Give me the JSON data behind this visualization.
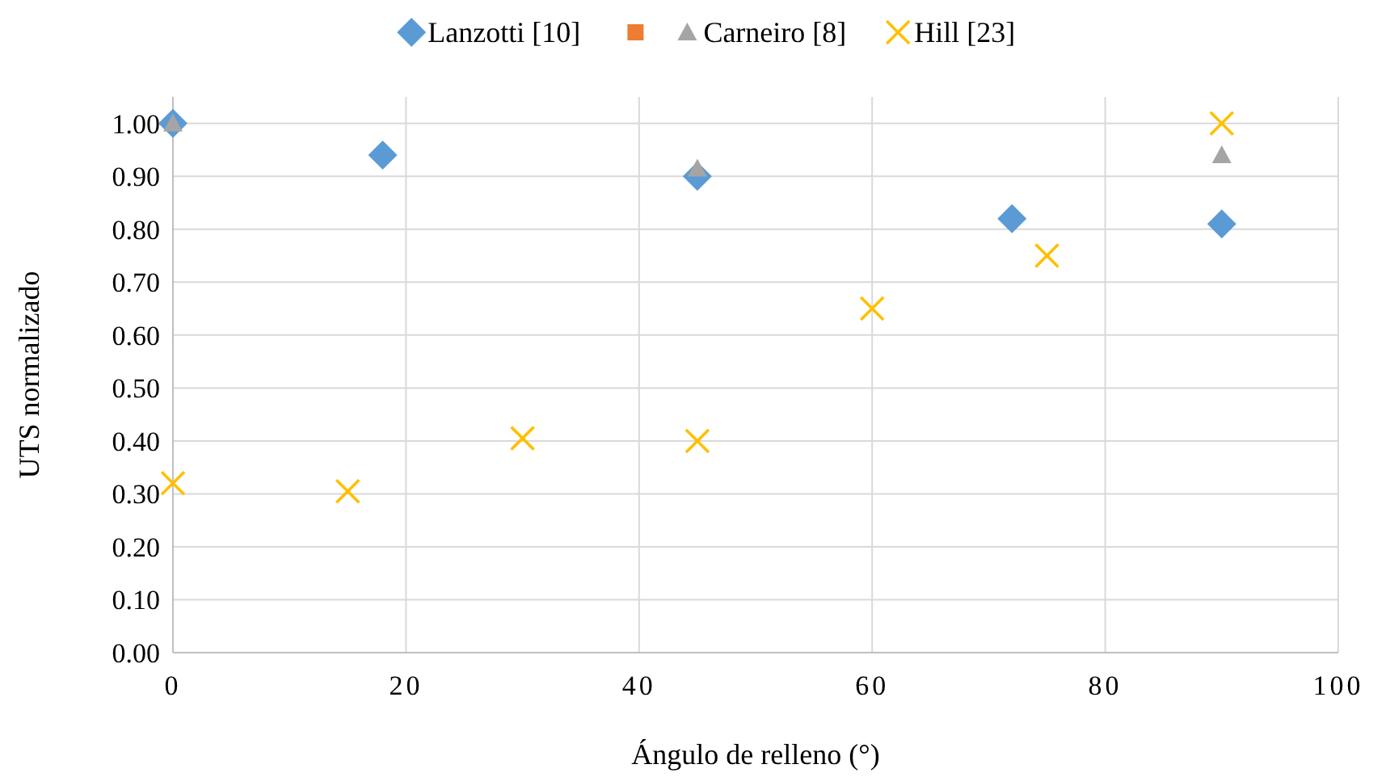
{
  "chart_data": {
    "type": "scatter",
    "xlabel": "Ángulo de relleno (°)",
    "ylabel": "UTS normalizado",
    "xlim": [
      0,
      100
    ],
    "xticks": [
      0,
      20,
      40,
      60,
      80,
      100
    ],
    "ylim": [
      0,
      1.05
    ],
    "yticks": [
      {
        "value": 0,
        "label": "0.00"
      },
      {
        "value": 0.1,
        "label": "0.10"
      },
      {
        "value": 0.2,
        "label": "0.20"
      },
      {
        "value": 0.3,
        "label": "0.30"
      },
      {
        "value": 0.4,
        "label": "0.40"
      },
      {
        "value": 0.5,
        "label": "0.50"
      },
      {
        "value": 0.6,
        "label": "0.60"
      },
      {
        "value": 0.7,
        "label": "0.70"
      },
      {
        "value": 0.8,
        "label": "0.80"
      },
      {
        "value": 0.9,
        "label": "0.90"
      },
      {
        "value": 1,
        "label": "1.00"
      }
    ],
    "grid": true,
    "legend": "top",
    "series": [
      {
        "name": "Lanzotti [10]",
        "color": "#5b9bd5",
        "marker": "diamond",
        "x": [
          0,
          18,
          45,
          72,
          90
        ],
        "values": [
          1.0,
          0.94,
          0.9,
          0.82,
          0.81
        ]
      },
      {
        "color": "#ed7d31",
        "marker": "square"
      },
      {
        "name": "Carneiro [8]",
        "color": "#a5a5a5",
        "marker": "triangle",
        "x": [
          0,
          45,
          90
        ],
        "values": [
          1.0,
          0.915,
          0.94
        ]
      },
      {
        "name": "Hill [23]",
        "color": "#ffc000",
        "marker": "cross",
        "x": [
          0,
          15,
          30,
          45,
          60,
          75,
          90
        ],
        "values": [
          0.32,
          0.305,
          0.405,
          0.4,
          0.65,
          0.75,
          1.0
        ]
      }
    ]
  }
}
